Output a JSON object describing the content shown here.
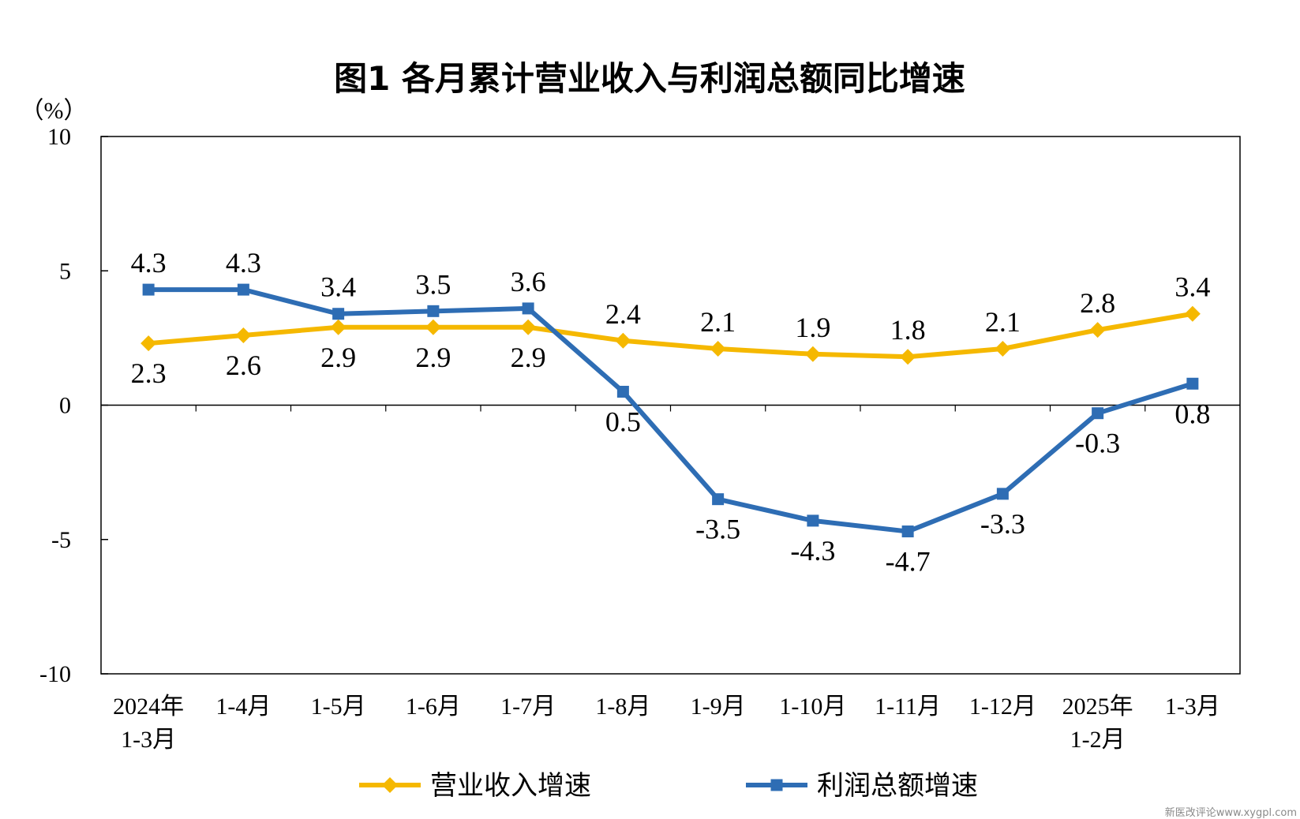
{
  "chart_data": {
    "type": "line",
    "title": "图1  各月累计营业收入与利润总额同比增速",
    "unit_label": "（%）",
    "ylim": [
      -10,
      10
    ],
    "yticks": [
      10,
      5,
      0,
      -5,
      -10
    ],
    "ytick_labels": [
      "10",
      "5",
      "0",
      "-5",
      "-10"
    ],
    "categories": [
      [
        "2024年",
        "1-3月"
      ],
      [
        "1-4月"
      ],
      [
        "1-5月"
      ],
      [
        "1-6月"
      ],
      [
        "1-7月"
      ],
      [
        "1-8月"
      ],
      [
        "1-9月"
      ],
      [
        "1-10月"
      ],
      [
        "1-11月"
      ],
      [
        "1-12月"
      ],
      [
        "2025年",
        "1-2月"
      ],
      [
        "1-3月"
      ]
    ],
    "series": [
      {
        "name": "营业收入增速",
        "color": "#F5B800",
        "marker": "diamond",
        "values": [
          2.3,
          2.6,
          2.9,
          2.9,
          2.9,
          2.4,
          2.1,
          1.9,
          1.8,
          2.1,
          2.8,
          3.4
        ],
        "labels": [
          "2.3",
          "2.6",
          "2.9",
          "2.9",
          "2.9",
          "2.4",
          "2.1",
          "1.9",
          "1.8",
          "2.1",
          "2.8",
          "3.4"
        ],
        "label_pos": [
          "below",
          "below",
          "below",
          "below",
          "below",
          "above",
          "above",
          "above",
          "above",
          "above",
          "above",
          "above"
        ]
      },
      {
        "name": "利润总额增速",
        "color": "#2E6DB4",
        "marker": "square",
        "values": [
          4.3,
          4.3,
          3.4,
          3.5,
          3.6,
          0.5,
          -3.5,
          -4.3,
          -4.7,
          -3.3,
          -0.3,
          0.8
        ],
        "labels": [
          "4.3",
          "4.3",
          "3.4",
          "3.5",
          "3.6",
          "0.5",
          "-3.5",
          "-4.3",
          "-4.7",
          "-3.3",
          "-0.3",
          "0.8"
        ],
        "label_pos": [
          "above",
          "above",
          "above",
          "above",
          "above",
          "below",
          "below",
          "below",
          "below",
          "below",
          "below",
          "below"
        ]
      }
    ],
    "legend_position": "bottom",
    "grid": false
  },
  "watermark": "新医改评论www.xygpl.com"
}
